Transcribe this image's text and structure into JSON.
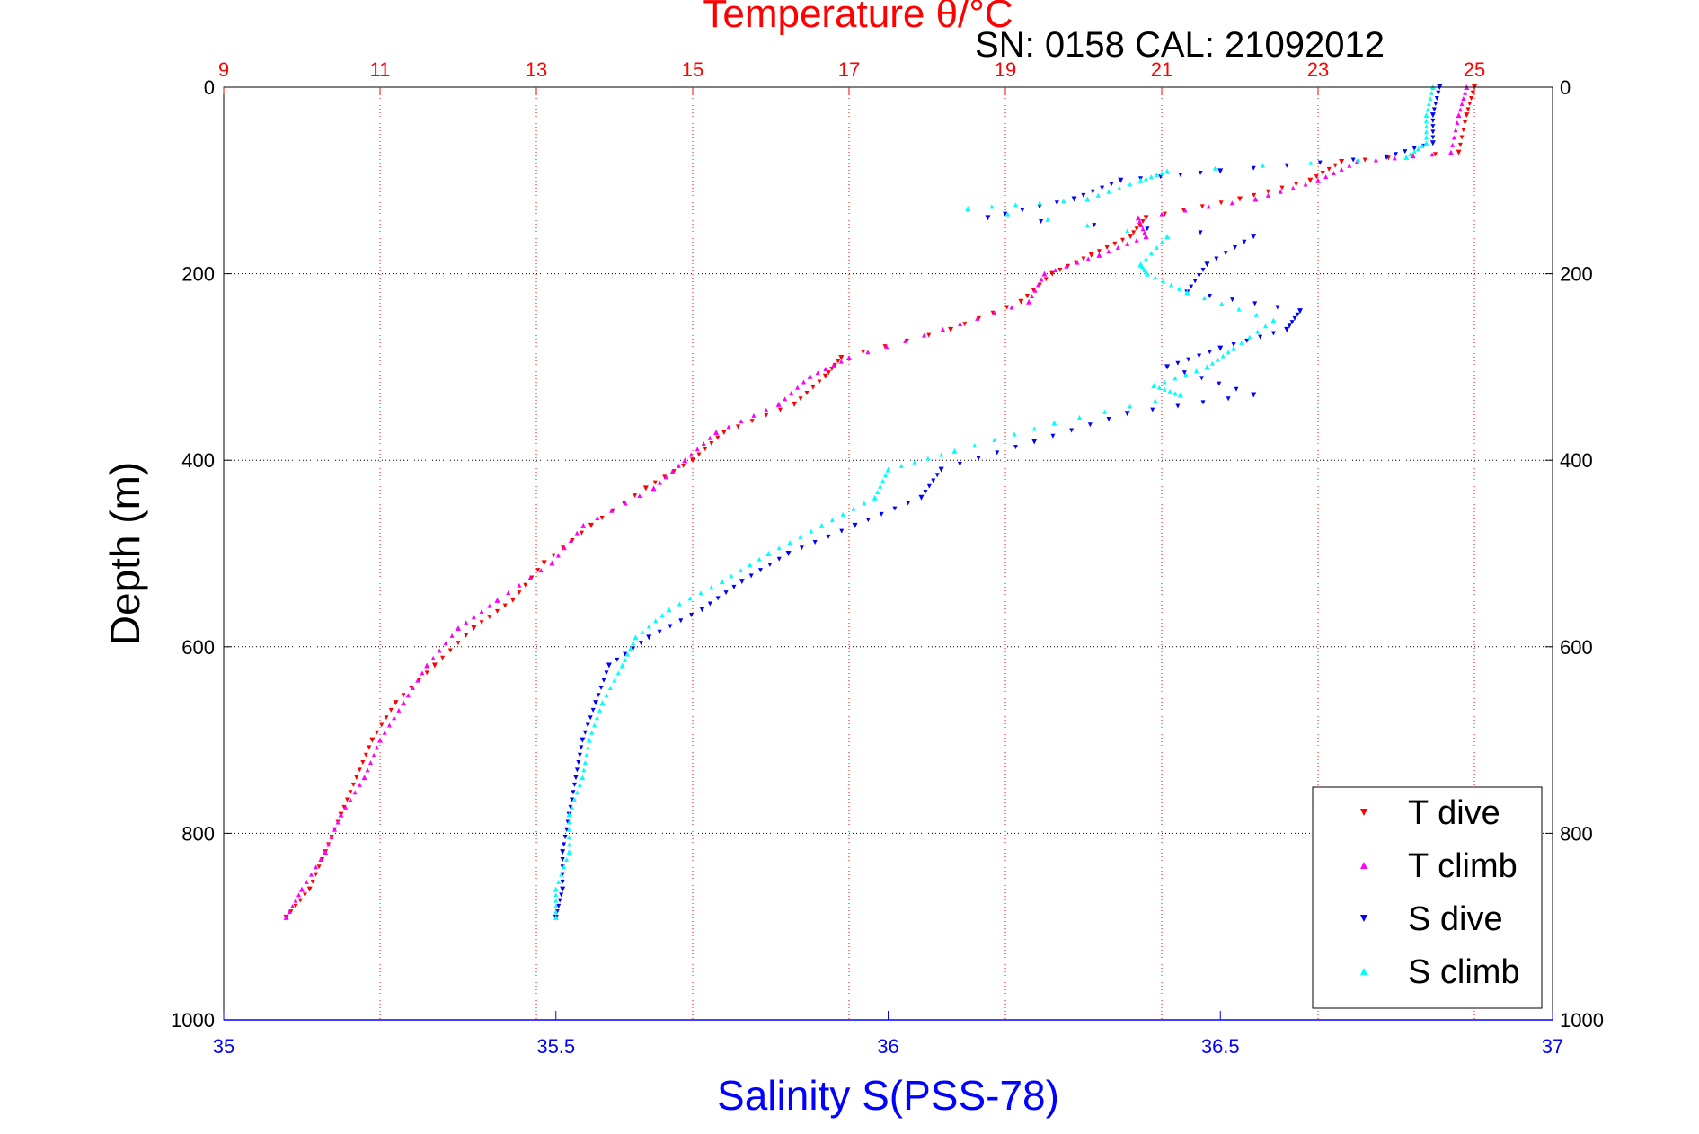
{
  "chart_data": {
    "type": "scatter",
    "title": "Temperature θ/°C",
    "info": "SN: 0158  CAL: 21092012",
    "ylabel": "Depth (m)",
    "xlabel_bottom": "Salinity S(PSS-78)",
    "ylim": [
      0,
      1000
    ],
    "y_reversed": true,
    "temperature_axis": {
      "range": [
        9,
        26
      ],
      "ticks": [
        "9",
        "11",
        "13",
        "15",
        "17",
        "19",
        "21",
        "23",
        "25"
      ],
      "tick_values": [
        9,
        11,
        13,
        15,
        17,
        19,
        21,
        23,
        25
      ],
      "color": "#ff0000"
    },
    "salinity_axis": {
      "range": [
        35,
        37
      ],
      "ticks": [
        "35",
        "35.5",
        "36",
        "36.5",
        "37"
      ],
      "tick_values": [
        35,
        35.5,
        36,
        36.5,
        37
      ],
      "color": "#0000ff"
    },
    "depth_ticks": [
      "0",
      "200",
      "400",
      "600",
      "800",
      "1000"
    ],
    "depth_tick_values": [
      0,
      200,
      400,
      600,
      800,
      1000
    ],
    "grid": true,
    "legend_position": "bottom-right",
    "legend": [
      "T dive",
      "T climb",
      "S dive",
      "S climb"
    ],
    "series": [
      {
        "name": "T dive",
        "axis": "temperature",
        "color": "#ff0000",
        "marker": "triangle-down",
        "depth": [
          0,
          30,
          70,
          80,
          100,
          120,
          140,
          160,
          180,
          200,
          230,
          260,
          290,
          310,
          340,
          370,
          400,
          430,
          470,
          510,
          550,
          580,
          620,
          660,
          700,
          740,
          780,
          820,
          860,
          890
        ],
        "values": [
          25.0,
          24.9,
          24.8,
          23.3,
          22.9,
          22.0,
          20.8,
          20.6,
          20.1,
          19.6,
          19.2,
          18.3,
          16.9,
          16.7,
          16.3,
          15.4,
          15.0,
          14.4,
          13.7,
          13.1,
          12.7,
          12.2,
          11.7,
          11.2,
          10.9,
          10.7,
          10.5,
          10.3,
          10.1,
          9.8
        ]
      },
      {
        "name": "T climb",
        "axis": "temperature",
        "color": "#ff00ff",
        "marker": "triangle-up",
        "depth": [
          0,
          30,
          70,
          80,
          100,
          120,
          140,
          160,
          180,
          200,
          230,
          260,
          290,
          310,
          340,
          370,
          400,
          430,
          470,
          510,
          550,
          580,
          620,
          660,
          700,
          740,
          780,
          820,
          860,
          890
        ],
        "values": [
          24.9,
          24.8,
          24.7,
          23.5,
          23.0,
          22.2,
          20.7,
          20.8,
          20.2,
          19.5,
          19.3,
          18.2,
          17.0,
          16.5,
          16.1,
          15.3,
          14.9,
          14.5,
          13.6,
          13.2,
          12.5,
          12.0,
          11.6,
          11.3,
          11.0,
          10.8,
          10.5,
          10.3,
          10.0,
          9.8
        ]
      },
      {
        "name": "S dive",
        "axis": "salinity",
        "color": "#0000ff",
        "marker": "triangle-down",
        "depth": [
          0,
          30,
          60,
          75,
          90,
          100,
          120,
          140,
          160,
          190,
          220,
          240,
          260,
          280,
          300,
          330,
          350,
          380,
          410,
          440,
          470,
          500,
          530,
          560,
          590,
          620,
          660,
          700,
          740,
          780,
          820,
          860,
          890
        ],
        "values": [
          36.83,
          36.82,
          36.82,
          36.75,
          36.5,
          36.35,
          36.28,
          36.15,
          36.55,
          36.48,
          36.45,
          36.62,
          36.6,
          36.5,
          36.42,
          36.55,
          36.36,
          36.22,
          36.08,
          36.05,
          35.95,
          35.85,
          35.78,
          35.72,
          35.64,
          35.58,
          35.56,
          35.54,
          35.53,
          35.52,
          35.51,
          35.51,
          35.5
        ]
      },
      {
        "name": "S climb",
        "axis": "salinity",
        "color": "#00ffff",
        "marker": "triangle-up",
        "depth": [
          0,
          30,
          60,
          75,
          90,
          100,
          120,
          130,
          160,
          190,
          200,
          220,
          250,
          280,
          300,
          320,
          330,
          360,
          390,
          410,
          440,
          470,
          500,
          530,
          560,
          590,
          620,
          660,
          700,
          740,
          780,
          820,
          860,
          890
        ],
        "values": [
          36.82,
          36.81,
          36.81,
          36.78,
          36.42,
          36.38,
          36.3,
          36.12,
          36.42,
          36.38,
          36.39,
          36.45,
          36.58,
          36.52,
          36.48,
          36.4,
          36.44,
          36.25,
          36.1,
          36.0,
          35.98,
          35.9,
          35.82,
          35.75,
          35.67,
          35.62,
          35.6,
          35.57,
          35.55,
          35.54,
          35.52,
          35.52,
          35.5,
          35.5
        ]
      }
    ]
  }
}
